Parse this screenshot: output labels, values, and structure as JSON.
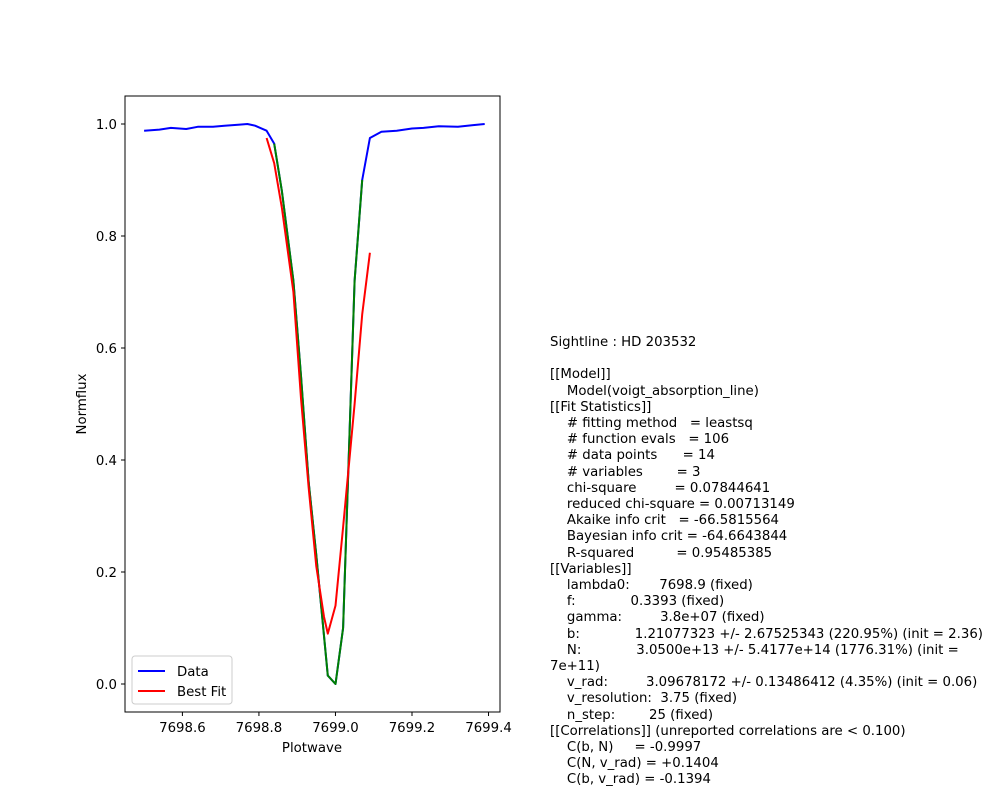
{
  "chart_data": {
    "type": "line",
    "xlabel": "Plotwave",
    "ylabel": "Normflux",
    "xlim": [
      7698.45,
      7699.43
    ],
    "ylim": [
      -0.05,
      1.05
    ],
    "x_ticks": [
      "7698.6",
      "7698.8",
      "7699.0",
      "7699.2",
      "7699.4"
    ],
    "y_ticks": [
      "0.0",
      "0.2",
      "0.4",
      "0.6",
      "0.8",
      "1.0"
    ],
    "legend_position": "lower-left",
    "legend": [
      "Data",
      "Best Fit"
    ],
    "series": [
      {
        "name": "Data",
        "color": "#0000ff",
        "x": [
          7698.5,
          7698.54,
          7698.57,
          7698.61,
          7698.64,
          7698.68,
          7698.71,
          7698.75,
          7698.77,
          7698.79,
          7698.82,
          7698.84,
          7698.86,
          7698.89,
          7698.91,
          7698.93,
          7698.95,
          7698.98,
          7699.0,
          7699.02,
          7699.05,
          7699.07,
          7699.09,
          7699.12,
          7699.16,
          7699.2,
          7699.23,
          7699.27,
          7699.32,
          7699.36,
          7699.39
        ],
        "y": [
          0.988,
          0.99,
          0.993,
          0.991,
          0.995,
          0.995,
          0.997,
          0.999,
          1.0,
          0.997,
          0.988,
          0.965,
          0.88,
          0.72,
          0.55,
          0.36,
          0.23,
          0.015,
          0.0,
          0.1,
          0.72,
          0.9,
          0.975,
          0.986,
          0.988,
          0.992,
          0.993,
          0.996,
          0.995,
          0.998,
          1.0
        ]
      },
      {
        "name": "Data (fit region)",
        "color": "#008000",
        "x": [
          7698.84,
          7698.86,
          7698.89,
          7698.91,
          7698.93,
          7698.95,
          7698.98,
          7699.0,
          7699.02,
          7699.05,
          7699.07
        ],
        "y": [
          0.965,
          0.88,
          0.72,
          0.55,
          0.36,
          0.23,
          0.015,
          0.0,
          0.1,
          0.72,
          0.9
        ]
      },
      {
        "name": "Best Fit",
        "color": "#ff0000",
        "x": [
          7698.82,
          7698.84,
          7698.86,
          7698.89,
          7698.91,
          7698.93,
          7698.95,
          7698.97,
          7698.98,
          7699.0,
          7699.02,
          7699.05,
          7699.07,
          7699.09
        ],
        "y": [
          0.975,
          0.93,
          0.85,
          0.7,
          0.51,
          0.35,
          0.21,
          0.12,
          0.09,
          0.14,
          0.28,
          0.5,
          0.66,
          0.77
        ]
      }
    ]
  },
  "fit_report": [
    "Sightline : HD 203532",
    "",
    "[[Model]]",
    "    Model(voigt_absorption_line)",
    "[[Fit Statistics]]",
    "    # fitting method   = leastsq",
    "    # function evals   = 106",
    "    # data points      = 14",
    "    # variables        = 3",
    "    chi-square         = 0.07844641",
    "    reduced chi-square = 0.00713149",
    "    Akaike info crit   = -66.5815564",
    "    Bayesian info crit = -64.6643844",
    "    R-squared          = 0.95485385",
    "[[Variables]]",
    "    lambda0:       7698.9 (fixed)",
    "    f:             0.3393 (fixed)",
    "    gamma:         3.8e+07 (fixed)",
    "    b:             1.21077323 +/- 2.67525343 (220.95%) (init = 2.36)",
    "    N:             3.0500e+13 +/- 5.4177e+14 (1776.31%) (init =",
    "7e+11)",
    "    v_rad:         3.09678172 +/- 0.13486412 (4.35%) (init = 0.06)",
    "    v_resolution:  3.75 (fixed)",
    "    n_step:        25 (fixed)",
    "[[Correlations]] (unreported correlations are < 0.100)",
    "    C(b, N)     = -0.9997",
    "    C(N, v_rad) = +0.1404",
    "    C(b, v_rad) = -0.1394"
  ]
}
